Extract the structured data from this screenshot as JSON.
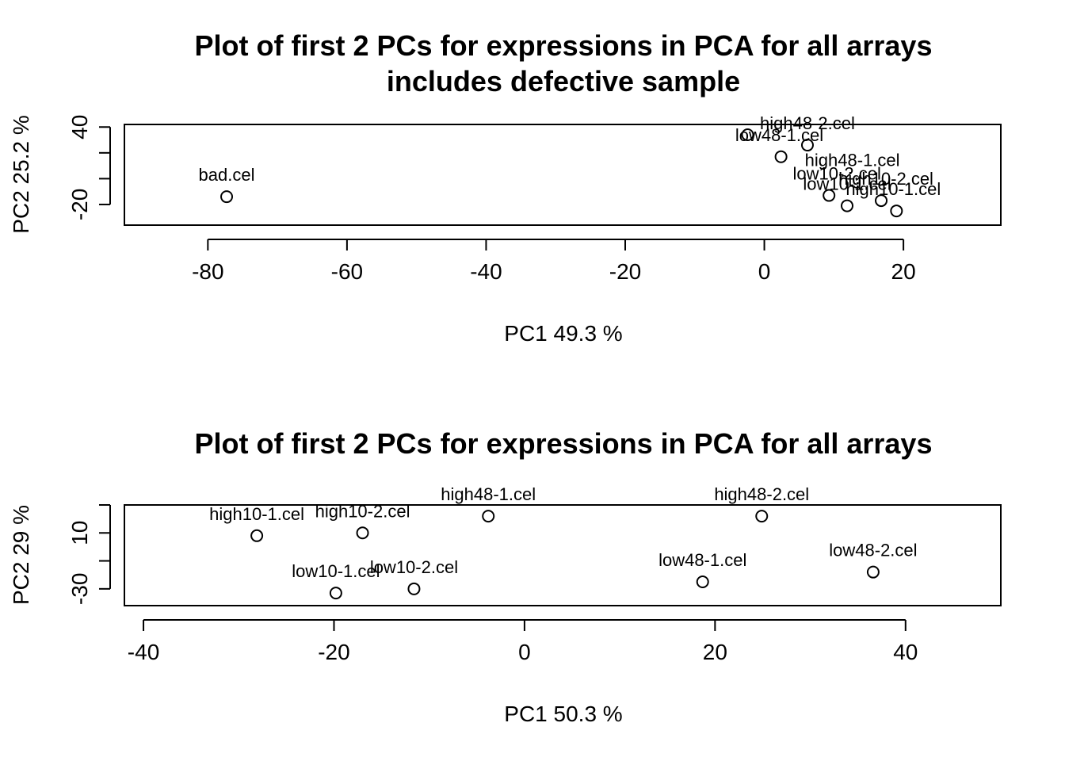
{
  "chart_data": [
    {
      "type": "scatter",
      "title": "Plot of first 2 PCs for expressions in PCA for all arrays",
      "subtitle": "includes defective sample",
      "xlabel": "PC1 49.3 %",
      "ylabel": "PC2 25.2 %",
      "xlim": [
        -92,
        34
      ],
      "ylim": [
        -36,
        42
      ],
      "xticks": [
        -80,
        -60,
        -40,
        -20,
        0,
        20
      ],
      "yticks": [
        -20,
        0,
        20,
        40
      ],
      "ytick_labels_shown": [
        "-20",
        "40"
      ],
      "points": [
        {
          "label": "bad.cel",
          "x": -77.3,
          "y": -14
        },
        {
          "label": "high48-2.cel",
          "x": 6.2,
          "y": 26
        },
        {
          "label": "low48-1.cel",
          "x": -2.4,
          "y": 34
        },
        {
          "label": "high48-1.cel",
          "x": 2.4,
          "y": 17
        },
        {
          "label": "low10-2.cel",
          "x": 9.3,
          "y": -13
        },
        {
          "label": "high10-2.cel",
          "x": 16.8,
          "y": -17
        },
        {
          "label": "low10-1.cel",
          "x": 11.9,
          "y": -21
        },
        {
          "label": "high10-1.cel",
          "x": 19.0,
          "y": -25
        }
      ]
    },
    {
      "type": "scatter",
      "title": "Plot of first 2 PCs for expressions in PCA for all arrays",
      "subtitle": "",
      "xlabel": "PC1 50.3 %",
      "ylabel": "PC2 29 %",
      "xlim": [
        -42,
        50
      ],
      "ylim": [
        -42,
        30
      ],
      "xticks": [
        -40,
        -20,
        0,
        20,
        40
      ],
      "yticks": [
        -30,
        -10,
        10,
        30
      ],
      "ytick_labels_shown": [
        "-30",
        "10"
      ],
      "points": [
        {
          "label": "high10-1.cel",
          "x": -28.1,
          "y": 8
        },
        {
          "label": "high10-2.cel",
          "x": -17.0,
          "y": 10
        },
        {
          "label": "high48-1.cel",
          "x": -3.8,
          "y": 22
        },
        {
          "label": "high48-2.cel",
          "x": 24.9,
          "y": 22
        },
        {
          "label": "low10-1.cel",
          "x": -19.8,
          "y": -33
        },
        {
          "label": "low10-2.cel",
          "x": -11.6,
          "y": -30
        },
        {
          "label": "low48-1.cel",
          "x": 18.7,
          "y": -25
        },
        {
          "label": "low48-2.cel",
          "x": 36.6,
          "y": -18
        }
      ]
    }
  ]
}
